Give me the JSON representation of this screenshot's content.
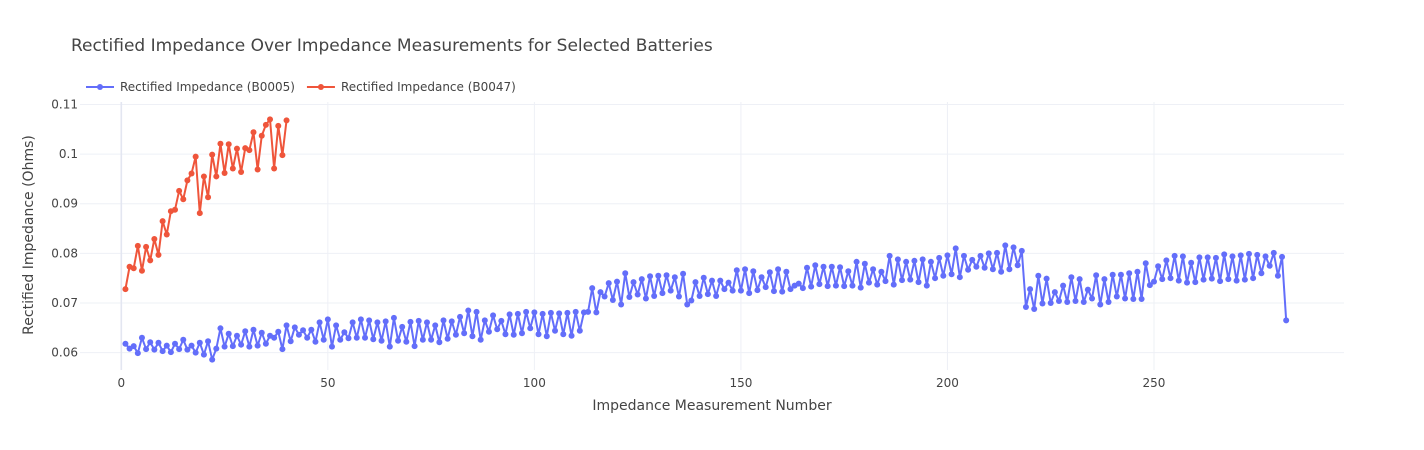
{
  "chart_data": {
    "type": "line",
    "title": "Rectified Impedance Over Impedance Measurements for Selected Batteries",
    "xlabel": "Impedance Measurement Number",
    "ylabel": "Rectified Impedance (Ohms)",
    "xlim": [
      -10,
      296
    ],
    "ylim": [
      0.0565,
      0.1105
    ],
    "xticks": [
      0,
      50,
      100,
      150,
      200,
      250
    ],
    "yticks": [
      0.06,
      0.07,
      0.08,
      0.09,
      0.1,
      0.11
    ],
    "grid": true,
    "legend_position": "top-left",
    "series": [
      {
        "name": "Rectified Impedance (B0005)",
        "color": "#636efa",
        "y": [
          0.0618,
          0.0608,
          0.0613,
          0.0599,
          0.063,
          0.0607,
          0.0621,
          0.0606,
          0.062,
          0.0603,
          0.0614,
          0.0601,
          0.0618,
          0.0607,
          0.0626,
          0.0606,
          0.0614,
          0.06,
          0.062,
          0.0596,
          0.0623,
          0.0586,
          0.0608,
          0.0649,
          0.0612,
          0.0638,
          0.0613,
          0.0634,
          0.0616,
          0.0643,
          0.0612,
          0.0646,
          0.0614,
          0.064,
          0.0618,
          0.0634,
          0.063,
          0.0642,
          0.0607,
          0.0655,
          0.0623,
          0.0651,
          0.0636,
          0.0645,
          0.063,
          0.0646,
          0.0622,
          0.0661,
          0.0626,
          0.0667,
          0.0612,
          0.0655,
          0.0626,
          0.0641,
          0.0629,
          0.0661,
          0.063,
          0.0667,
          0.063,
          0.0665,
          0.0627,
          0.0661,
          0.0624,
          0.0663,
          0.0612,
          0.067,
          0.0624,
          0.0652,
          0.0622,
          0.0662,
          0.0613,
          0.0664,
          0.0626,
          0.0661,
          0.0626,
          0.0655,
          0.0621,
          0.0665,
          0.0628,
          0.0663,
          0.0636,
          0.0672,
          0.0639,
          0.0685,
          0.0633,
          0.0682,
          0.0626,
          0.0665,
          0.0642,
          0.0675,
          0.0647,
          0.0664,
          0.0637,
          0.0677,
          0.0636,
          0.0678,
          0.0639,
          0.0682,
          0.0649,
          0.0681,
          0.0637,
          0.0678,
          0.0633,
          0.068,
          0.0644,
          0.0679,
          0.0637,
          0.068,
          0.0634,
          0.0682,
          0.0644,
          0.0681,
          0.0682,
          0.073,
          0.0681,
          0.0722,
          0.0713,
          0.074,
          0.0706,
          0.0743,
          0.0697,
          0.076,
          0.0712,
          0.0742,
          0.0717,
          0.0748,
          0.0709,
          0.0754,
          0.0714,
          0.0755,
          0.072,
          0.0756,
          0.0725,
          0.0752,
          0.0713,
          0.0759,
          0.0697,
          0.0705,
          0.0742,
          0.0714,
          0.0751,
          0.0718,
          0.0745,
          0.0714,
          0.0745,
          0.0728,
          0.0741,
          0.0725,
          0.0766,
          0.0725,
          0.0768,
          0.072,
          0.0764,
          0.0726,
          0.0752,
          0.0732,
          0.0762,
          0.0724,
          0.0768,
          0.0723,
          0.0763,
          0.0728,
          0.0735,
          0.0739,
          0.073,
          0.0771,
          0.0733,
          0.0776,
          0.0738,
          0.0773,
          0.0734,
          0.0773,
          0.0735,
          0.0772,
          0.0734,
          0.0764,
          0.0735,
          0.0783,
          0.0731,
          0.0779,
          0.0741,
          0.0768,
          0.0737,
          0.0763,
          0.0744,
          0.0795,
          0.0737,
          0.0788,
          0.0746,
          0.0783,
          0.0747,
          0.0785,
          0.0742,
          0.0788,
          0.0735,
          0.0783,
          0.075,
          0.0791,
          0.0755,
          0.0796,
          0.0758,
          0.081,
          0.0752,
          0.0795,
          0.0767,
          0.0787,
          0.0773,
          0.0795,
          0.0771,
          0.08,
          0.0768,
          0.0801,
          0.0763,
          0.0816,
          0.0768,
          0.0812,
          0.0776,
          0.0805,
          0.0692,
          0.0728,
          0.0688,
          0.0755,
          0.0699,
          0.0749,
          0.07,
          0.0722,
          0.0704,
          0.0735,
          0.0702,
          0.0752,
          0.0704,
          0.0748,
          0.0702,
          0.0727,
          0.0709,
          0.0756,
          0.0697,
          0.0748,
          0.0702,
          0.0757,
          0.0713,
          0.0757,
          0.0709,
          0.076,
          0.0708,
          0.0763,
          0.0708,
          0.078,
          0.0736,
          0.0743,
          0.0774,
          0.0748,
          0.0786,
          0.075,
          0.0795,
          0.0745,
          0.0794,
          0.0741,
          0.0781,
          0.0742,
          0.0792,
          0.0747,
          0.0792,
          0.0749,
          0.0791,
          0.0744,
          0.0798,
          0.0748,
          0.0794,
          0.0745,
          0.0796,
          0.0747,
          0.0799,
          0.075,
          0.0797,
          0.076,
          0.0794,
          0.0775,
          0.0801,
          0.0755,
          0.0793,
          0.0665
        ]
      },
      {
        "name": "Rectified Impedance (B0047)",
        "color": "#ef553b",
        "y": [
          0.0728,
          0.0773,
          0.077,
          0.0815,
          0.0765,
          0.0813,
          0.0786,
          0.0829,
          0.0797,
          0.0865,
          0.0838,
          0.0885,
          0.0888,
          0.0926,
          0.0909,
          0.0947,
          0.0961,
          0.0995,
          0.0881,
          0.0955,
          0.0913,
          0.0999,
          0.0955,
          0.1021,
          0.0962,
          0.102,
          0.0971,
          0.1011,
          0.0964,
          0.1012,
          0.1008,
          0.1044,
          0.0969,
          0.1037,
          0.1059,
          0.107,
          0.0971,
          0.1057,
          0.0998,
          0.1068
        ]
      }
    ]
  }
}
